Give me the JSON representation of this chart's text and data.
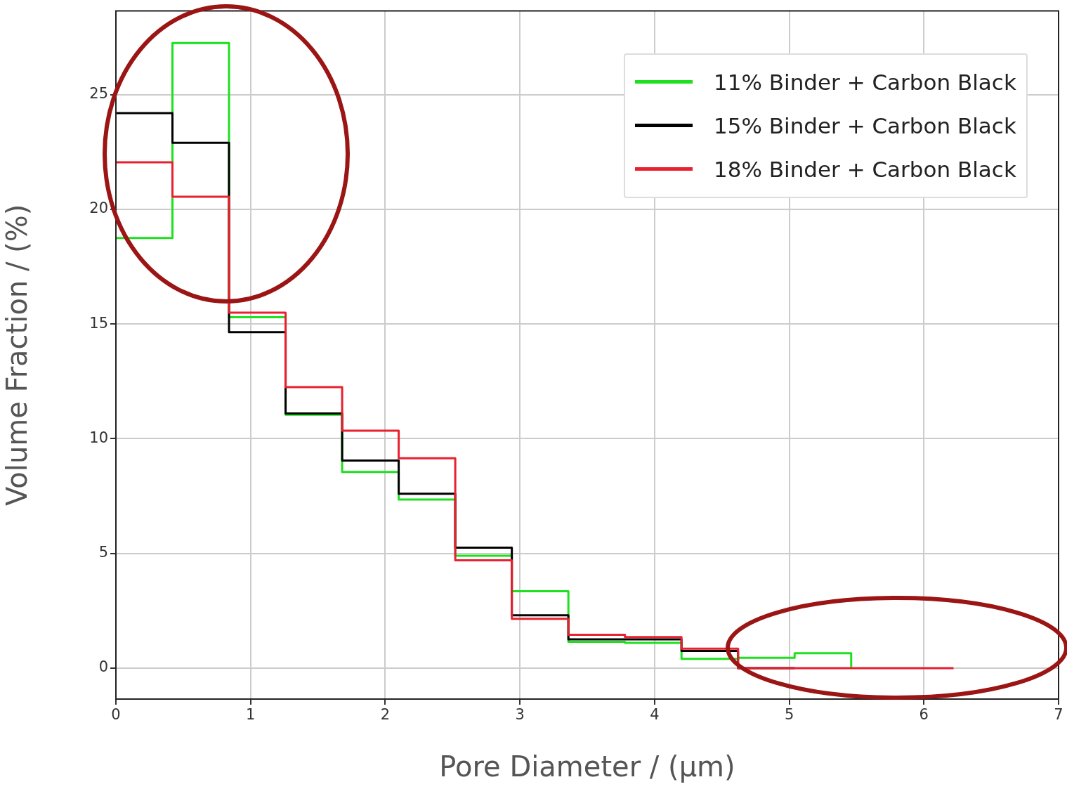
{
  "chart_data": {
    "type": "step",
    "xlabel": "Pore Diameter / (µm)",
    "ylabel": "Volume Fraction / (%)",
    "xlim": [
      0,
      7
    ],
    "xticks": [
      0,
      1,
      2,
      3,
      4,
      5,
      6,
      7
    ],
    "ylim": [
      -1.35,
      28.65
    ],
    "yticks": [
      0,
      5,
      10,
      15,
      20,
      25
    ],
    "grid": true,
    "legend": "top right",
    "line_style": "solid",
    "marker": "none",
    "series": [
      {
        "name": "11% Binder + Carbon Black",
        "color": "#1ee01e",
        "x": [
          0,
          0.42,
          0.84,
          1.26,
          1.68,
          2.1,
          2.52,
          2.94,
          3.36,
          3.78,
          4.2,
          4.62,
          5.04,
          5.46
        ],
        "values": [
          18.75,
          27.25,
          15.3,
          11.05,
          8.55,
          7.35,
          4.9,
          3.35,
          1.15,
          1.1,
          0.4,
          0.45,
          0.65,
          0
        ]
      },
      {
        "name": "15% Binder + Carbon Black",
        "color": "#000000",
        "x": [
          0,
          0.42,
          0.84,
          1.26,
          1.68,
          2.1,
          2.52,
          2.94,
          3.36,
          3.78,
          4.2,
          4.62,
          5.04
        ],
        "values": [
          24.2,
          22.9,
          14.65,
          11.1,
          9.05,
          7.6,
          5.25,
          2.3,
          1.25,
          1.25,
          0.75,
          0,
          0
        ]
      },
      {
        "name": "18% Binder + Carbon Black",
        "color": "#e8202f",
        "x": [
          0,
          0.42,
          0.84,
          1.26,
          1.68,
          2.1,
          2.52,
          2.94,
          3.36,
          3.78,
          4.2,
          4.62,
          5.04,
          5.46,
          6.22
        ],
        "values": [
          22.05,
          20.55,
          15.5,
          12.25,
          10.35,
          9.15,
          4.7,
          2.15,
          1.45,
          1.35,
          0.85,
          0,
          0,
          0,
          0
        ]
      }
    ]
  }
}
